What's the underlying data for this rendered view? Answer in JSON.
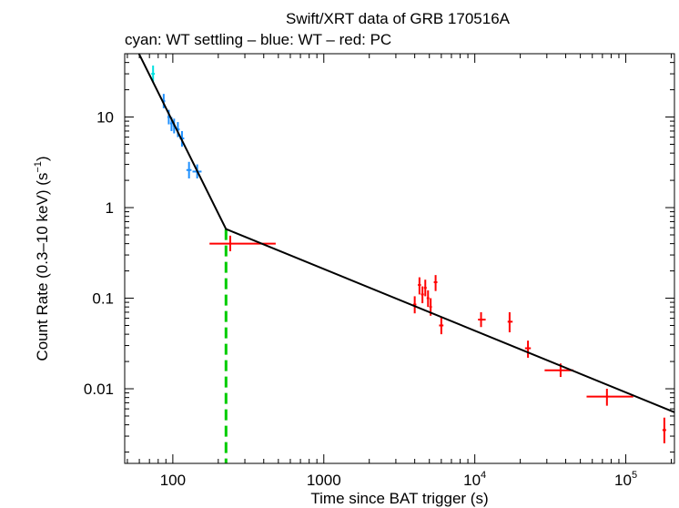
{
  "chart_data": {
    "type": "scatter",
    "title": "Swift/XRT data of GRB 170516A",
    "subtitle": "cyan: WT settling – blue: WT – red: PC",
    "xlabel": "Time since BAT trigger (s)",
    "ylabel_main": "Count Rate (0.3–10 keV) (s",
    "ylabel_exp": "−1",
    "ylabel_close": ")",
    "xscale": "log",
    "yscale": "log",
    "xlim": [
      48,
      210000
    ],
    "ylim": [
      0.0015,
      50
    ],
    "x_ticks": [
      {
        "value": 100,
        "base": "100",
        "exp": ""
      },
      {
        "value": 1000,
        "base": "1000",
        "exp": ""
      },
      {
        "value": 10000,
        "base": "10",
        "exp": "4"
      },
      {
        "value": 100000,
        "base": "10",
        "exp": "5"
      }
    ],
    "y_ticks": [
      {
        "value": 10,
        "label": "10"
      },
      {
        "value": 1,
        "label": "1"
      },
      {
        "value": 0.1,
        "label": "0.1"
      },
      {
        "value": 0.01,
        "label": "0.01"
      }
    ],
    "grid": false,
    "colors": {
      "wt_settling": "#00e0e0",
      "wt": "#1e90ff",
      "pc": "#ff0000",
      "fit": "#000000",
      "break_marker": "#00cc00"
    },
    "series": [
      {
        "key": "wt_settling",
        "points": [
          {
            "x": 74,
            "y": 30,
            "xlo": 72,
            "xhi": 76,
            "ylo": 24,
            "yhi": 37
          }
        ]
      },
      {
        "key": "wt",
        "points": [
          {
            "x": 87,
            "y": 15,
            "xlo": 85,
            "xhi": 89,
            "ylo": 12.5,
            "yhi": 18
          },
          {
            "x": 94,
            "y": 10,
            "xlo": 92,
            "xhi": 96,
            "ylo": 8.3,
            "yhi": 12
          },
          {
            "x": 98,
            "y": 8.5,
            "xlo": 96,
            "xhi": 100,
            "ylo": 7,
            "yhi": 10
          },
          {
            "x": 102,
            "y": 8,
            "xlo": 100,
            "xhi": 104,
            "ylo": 6.6,
            "yhi": 9.6
          },
          {
            "x": 108,
            "y": 7.3,
            "xlo": 105,
            "xhi": 111,
            "ylo": 6,
            "yhi": 8.8
          },
          {
            "x": 115,
            "y": 5.8,
            "xlo": 111,
            "xhi": 119,
            "ylo": 4.7,
            "yhi": 7
          },
          {
            "x": 128,
            "y": 2.6,
            "xlo": 123,
            "xhi": 133,
            "ylo": 2.1,
            "yhi": 3.2
          },
          {
            "x": 145,
            "y": 2.5,
            "xlo": 135,
            "xhi": 155,
            "ylo": 2.1,
            "yhi": 3
          }
        ]
      },
      {
        "key": "pc",
        "points": [
          {
            "x": 240,
            "y": 0.4,
            "xlo": 175,
            "xhi": 480,
            "ylo": 0.33,
            "yhi": 0.49
          },
          {
            "x": 4000,
            "y": 0.085,
            "xlo": 3900,
            "xhi": 4100,
            "ylo": 0.068,
            "yhi": 0.105
          },
          {
            "x": 4300,
            "y": 0.14,
            "xlo": 4200,
            "xhi": 4400,
            "ylo": 0.11,
            "yhi": 0.17
          },
          {
            "x": 4500,
            "y": 0.11,
            "xlo": 4400,
            "xhi": 4600,
            "ylo": 0.088,
            "yhi": 0.135
          },
          {
            "x": 4700,
            "y": 0.13,
            "xlo": 4600,
            "xhi": 4800,
            "ylo": 0.105,
            "yhi": 0.16
          },
          {
            "x": 4900,
            "y": 0.1,
            "xlo": 4800,
            "xhi": 5000,
            "ylo": 0.08,
            "yhi": 0.122
          },
          {
            "x": 5100,
            "y": 0.08,
            "xlo": 5000,
            "xhi": 5200,
            "ylo": 0.064,
            "yhi": 0.1
          },
          {
            "x": 5500,
            "y": 0.15,
            "xlo": 5350,
            "xhi": 5650,
            "ylo": 0.12,
            "yhi": 0.18
          },
          {
            "x": 6000,
            "y": 0.05,
            "xlo": 5800,
            "xhi": 6200,
            "ylo": 0.04,
            "yhi": 0.062
          },
          {
            "x": 11000,
            "y": 0.058,
            "xlo": 10500,
            "xhi": 11800,
            "ylo": 0.048,
            "yhi": 0.07
          },
          {
            "x": 17000,
            "y": 0.055,
            "xlo": 16500,
            "xhi": 17800,
            "ylo": 0.042,
            "yhi": 0.07
          },
          {
            "x": 22500,
            "y": 0.028,
            "xlo": 21500,
            "xhi": 23500,
            "ylo": 0.022,
            "yhi": 0.034
          },
          {
            "x": 37000,
            "y": 0.016,
            "xlo": 29000,
            "xhi": 45000,
            "ylo": 0.0135,
            "yhi": 0.019
          },
          {
            "x": 75000,
            "y": 0.0082,
            "xlo": 55000,
            "xhi": 112000,
            "ylo": 0.0065,
            "yhi": 0.01
          },
          {
            "x": 180000,
            "y": 0.0035,
            "xlo": 175000,
            "xhi": 185000,
            "ylo": 0.0025,
            "yhi": 0.0048
          }
        ]
      }
    ],
    "fit_line": [
      {
        "x": 58,
        "y": 55
      },
      {
        "x": 225,
        "y": 0.58
      },
      {
        "x": 210000,
        "y": 0.0055
      }
    ],
    "break_marker": {
      "x": 225
    }
  }
}
